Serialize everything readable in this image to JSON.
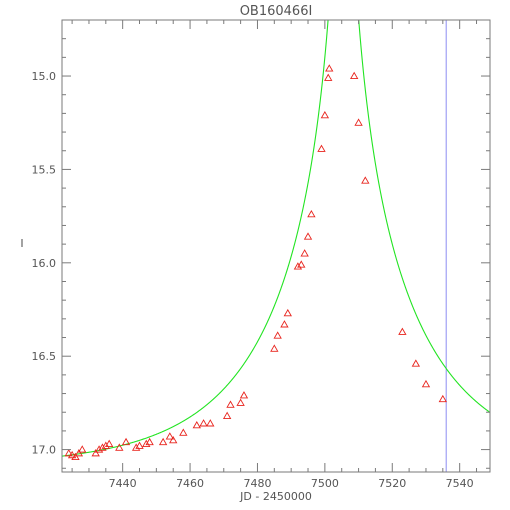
{
  "chart_data": {
    "type": "scatter",
    "title": "OB160466I",
    "xlabel": "JD - 2450000",
    "ylabel": "I",
    "xlim": [
      7422,
      7549
    ],
    "ylim": [
      17.12,
      14.7
    ],
    "y_inverted": true,
    "grid": false,
    "x_ticks": [
      7440,
      7460,
      7480,
      7500,
      7520,
      7540
    ],
    "y_ticks": [
      15.0,
      15.5,
      16.0,
      16.5,
      17.0
    ],
    "series": [
      {
        "kind": "points",
        "marker": "triangle-open",
        "color": "#e8231c",
        "points": [
          [
            7424,
            17.02
          ],
          [
            7425,
            17.03
          ],
          [
            7426,
            17.04
          ],
          [
            7427,
            17.02
          ],
          [
            7428,
            17.0
          ],
          [
            7432,
            17.02
          ],
          [
            7433,
            17.0
          ],
          [
            7434,
            16.99
          ],
          [
            7435,
            16.98
          ],
          [
            7436,
            16.97
          ],
          [
            7439,
            16.99
          ],
          [
            7441,
            16.96
          ],
          [
            7444,
            16.99
          ],
          [
            7445,
            16.98
          ],
          [
            7447,
            16.97
          ],
          [
            7448,
            16.96
          ],
          [
            7452,
            16.96
          ],
          [
            7454,
            16.93
          ],
          [
            7455,
            16.95
          ],
          [
            7458,
            16.91
          ],
          [
            7462,
            16.87
          ],
          [
            7464,
            16.86
          ],
          [
            7466,
            16.86
          ],
          [
            7471,
            16.82
          ],
          [
            7472,
            16.76
          ],
          [
            7475,
            16.75
          ],
          [
            7476,
            16.71
          ],
          [
            7485,
            16.46
          ],
          [
            7486,
            16.39
          ],
          [
            7488,
            16.33
          ],
          [
            7489,
            16.27
          ],
          [
            7492,
            16.02
          ],
          [
            7493,
            16.01
          ],
          [
            7494,
            15.95
          ],
          [
            7495,
            15.86
          ],
          [
            7496,
            15.74
          ],
          [
            7499,
            15.39
          ],
          [
            7500,
            15.21
          ],
          [
            7501,
            15.01
          ],
          [
            7501.3,
            14.96
          ],
          [
            7508.7,
            15.0
          ],
          [
            7510,
            15.25
          ],
          [
            7512,
            15.56
          ],
          [
            7523,
            16.37
          ],
          [
            7527,
            16.54
          ],
          [
            7530,
            16.65
          ],
          [
            7535,
            16.73
          ]
        ]
      },
      {
        "kind": "model-curve",
        "color": "#22e422",
        "t0": 7505.5,
        "u0": 0.02,
        "tE": 42,
        "base_mag": 17.1
      }
    ],
    "reference_line": {
      "x": 7536,
      "color": "#8c8cf2"
    }
  }
}
